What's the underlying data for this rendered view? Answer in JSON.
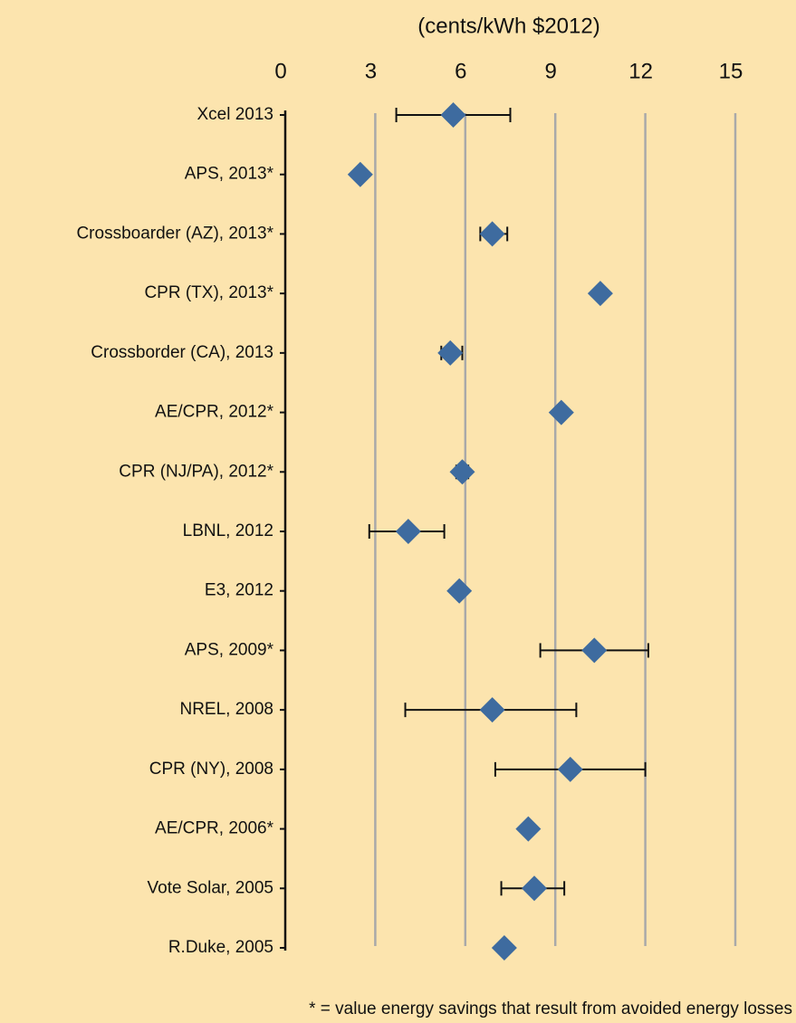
{
  "chart_data": {
    "type": "dot_errorbar",
    "title": "(cents/kWh $2012)",
    "footnote": "* = value energy savings that result from avoided energy losses",
    "categories": [
      "Xcel 2013",
      "APS, 2013*",
      "Crossboarder (AZ), 2013*",
      "CPR (TX), 2013*",
      "Crossborder (CA), 2013",
      "AE/CPR, 2012*",
      "CPR (NJ/PA), 2012*",
      "LBNL, 2012",
      "E3, 2012",
      "APS, 2009*",
      "NREL, 2008",
      "CPR (NY), 2008",
      "AE/CPR, 2006*",
      "Vote Solar, 2005",
      "R.Duke, 2005"
    ],
    "values": [
      5.6,
      2.5,
      6.9,
      10.5,
      5.5,
      9.2,
      5.9,
      4.1,
      5.8,
      10.3,
      6.9,
      9.5,
      8.1,
      8.3,
      7.3
    ],
    "lower": [
      3.7,
      null,
      6.5,
      10.45,
      5.2,
      null,
      5.7,
      2.8,
      null,
      8.5,
      4.0,
      7.0,
      8.05,
      7.2,
      null
    ],
    "upper": [
      7.5,
      null,
      7.4,
      10.55,
      5.9,
      null,
      6.1,
      5.3,
      null,
      12.1,
      9.7,
      12.0,
      8.15,
      9.3,
      null
    ],
    "color": "#3e6b9f",
    "xlim": [
      0,
      15
    ],
    "xticks": [
      0,
      3,
      6,
      9,
      12,
      15
    ],
    "grid": true
  }
}
